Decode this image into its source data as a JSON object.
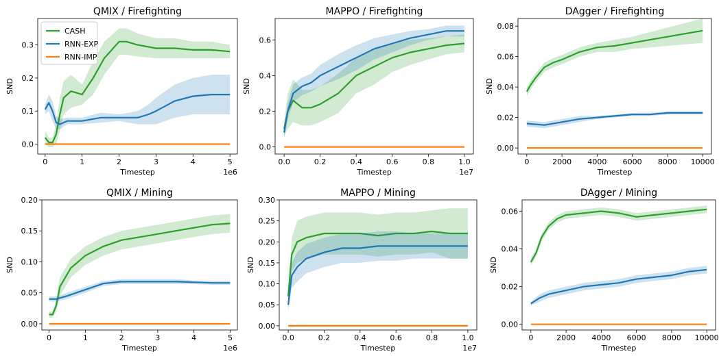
{
  "colors": {
    "CASH": "#2ca02c",
    "RNN-EXP": "#1f77b4",
    "RNN-IMP": "#ff7f0e"
  },
  "legend": [
    "CASH",
    "RNN-EXP",
    "RNN-IMP"
  ],
  "chart_data": [
    {
      "type": "line",
      "title": "QMIX / Firefighting",
      "xlabel": "Timestep",
      "ylabel": "SND",
      "xlim": [
        -0.2,
        5.2
      ],
      "ylim": [
        -0.03,
        0.38
      ],
      "xticks": [
        0,
        1,
        2,
        3,
        4,
        5
      ],
      "xtick_labels": [
        "0",
        "1",
        "2",
        "3",
        "4",
        "5"
      ],
      "x_offset": "1e6",
      "yticks": [
        0.0,
        0.1,
        0.2,
        0.3
      ],
      "ytick_labels": [
        "0.0",
        "0.1",
        "0.2",
        "0.3"
      ],
      "legend": "upper-left",
      "series": [
        {
          "name": "CASH",
          "x": [
            0,
            0.1,
            0.2,
            0.3,
            0.4,
            0.5,
            0.7,
            1.0,
            1.3,
            1.6,
            2.0,
            2.2,
            2.5,
            3.0,
            3.5,
            4.0,
            4.5,
            5.0
          ],
          "y": [
            0.02,
            0.005,
            0.005,
            0.03,
            0.09,
            0.14,
            0.16,
            0.15,
            0.2,
            0.26,
            0.31,
            0.31,
            0.3,
            0.29,
            0.29,
            0.285,
            0.285,
            0.28
          ],
          "band": [
            0.02,
            0.015,
            0.015,
            0.03,
            0.05,
            0.05,
            0.05,
            0.03,
            0.05,
            0.05,
            0.04,
            0.04,
            0.035,
            0.03,
            0.03,
            0.025,
            0.025,
            0.02
          ]
        },
        {
          "name": "RNN-EXP",
          "x": [
            0,
            0.1,
            0.2,
            0.3,
            0.4,
            0.6,
            1.0,
            1.5,
            2.0,
            2.5,
            2.8,
            3.0,
            3.5,
            4.0,
            4.5,
            5.0
          ],
          "y": [
            0.105,
            0.125,
            0.1,
            0.065,
            0.06,
            0.07,
            0.07,
            0.08,
            0.08,
            0.08,
            0.09,
            0.1,
            0.13,
            0.145,
            0.15,
            0.15
          ],
          "band": [
            0.015,
            0.025,
            0.03,
            0.02,
            0.015,
            0.01,
            0.01,
            0.015,
            0.01,
            0.02,
            0.03,
            0.04,
            0.05,
            0.055,
            0.06,
            0.06
          ]
        },
        {
          "name": "RNN-IMP",
          "x": [
            0,
            5.0
          ],
          "y": [
            0.0,
            0.0
          ],
          "band": [
            0,
            0
          ]
        }
      ]
    },
    {
      "type": "line",
      "title": "MAPPO / Firefighting",
      "xlabel": "Timestep",
      "ylabel": "SND",
      "xlim": [
        -0.05,
        1.05
      ],
      "ylim": [
        -0.04,
        0.72
      ],
      "xticks": [
        0.0,
        0.2,
        0.4,
        0.6,
        0.8,
        1.0
      ],
      "xtick_labels": [
        "0.0",
        "0.2",
        "0.4",
        "0.6",
        "0.8",
        "1.0"
      ],
      "x_offset": "1e7",
      "yticks": [
        0.0,
        0.2,
        0.4,
        0.6
      ],
      "ytick_labels": [
        "0.0",
        "0.2",
        "0.4",
        "0.6"
      ],
      "series": [
        {
          "name": "CASH",
          "x": [
            0,
            0.02,
            0.05,
            0.1,
            0.15,
            0.2,
            0.3,
            0.4,
            0.5,
            0.6,
            0.7,
            0.8,
            0.9,
            1.0
          ],
          "y": [
            0.1,
            0.2,
            0.26,
            0.22,
            0.22,
            0.24,
            0.3,
            0.4,
            0.45,
            0.5,
            0.53,
            0.55,
            0.57,
            0.58
          ],
          "band": [
            0.04,
            0.1,
            0.12,
            0.1,
            0.1,
            0.1,
            0.11,
            0.1,
            0.1,
            0.08,
            0.07,
            0.06,
            0.05,
            0.05
          ]
        },
        {
          "name": "RNN-EXP",
          "x": [
            0,
            0.02,
            0.05,
            0.1,
            0.15,
            0.2,
            0.3,
            0.4,
            0.5,
            0.6,
            0.7,
            0.8,
            0.9,
            1.0
          ],
          "y": [
            0.08,
            0.2,
            0.3,
            0.34,
            0.36,
            0.4,
            0.45,
            0.5,
            0.55,
            0.58,
            0.61,
            0.63,
            0.65,
            0.65
          ],
          "band": [
            0.03,
            0.05,
            0.05,
            0.05,
            0.05,
            0.06,
            0.07,
            0.07,
            0.06,
            0.05,
            0.04,
            0.03,
            0.03,
            0.03
          ]
        },
        {
          "name": "RNN-IMP",
          "x": [
            0,
            1.0
          ],
          "y": [
            0.0,
            0.0
          ],
          "band": [
            0,
            0
          ]
        }
      ]
    },
    {
      "type": "line",
      "title": "DAgger / Firefighting",
      "xlabel": "Timestep",
      "ylabel": "SND",
      "xlim": [
        -500,
        10500
      ],
      "ylim": [
        -0.004,
        0.085
      ],
      "xticks": [
        0,
        2000,
        4000,
        6000,
        8000,
        10000
      ],
      "xtick_labels": [
        "0",
        "2000",
        "4000",
        "6000",
        "8000",
        "10000"
      ],
      "x_offset": "",
      "yticks": [
        0.0,
        0.02,
        0.04,
        0.06,
        0.08
      ],
      "ytick_labels": [
        "0.00",
        "0.02",
        "0.04",
        "0.06",
        "0.08"
      ],
      "series": [
        {
          "name": "CASH",
          "x": [
            0,
            200,
            500,
            1000,
            1500,
            2000,
            3000,
            4000,
            5000,
            6000,
            7000,
            8000,
            9000,
            10000
          ],
          "y": [
            0.037,
            0.041,
            0.046,
            0.053,
            0.056,
            0.058,
            0.063,
            0.066,
            0.067,
            0.069,
            0.071,
            0.073,
            0.075,
            0.077
          ],
          "band": [
            0.003,
            0.003,
            0.003,
            0.003,
            0.003,
            0.003,
            0.003,
            0.003,
            0.004,
            0.004,
            0.005,
            0.006,
            0.007,
            0.008
          ]
        },
        {
          "name": "RNN-EXP",
          "x": [
            0,
            1000,
            2000,
            3000,
            4000,
            5000,
            6000,
            7000,
            8000,
            9000,
            10000
          ],
          "y": [
            0.016,
            0.015,
            0.017,
            0.019,
            0.02,
            0.021,
            0.022,
            0.022,
            0.023,
            0.023,
            0.023
          ],
          "band": [
            0.002,
            0.002,
            0.002,
            0.002,
            0.001,
            0.001,
            0.001,
            0.001,
            0.001,
            0.001,
            0.001
          ]
        },
        {
          "name": "RNN-IMP",
          "x": [
            0,
            10000
          ],
          "y": [
            0.0,
            0.0
          ],
          "band": [
            0,
            0
          ]
        }
      ]
    },
    {
      "type": "line",
      "title": "QMIX / Mining",
      "xlabel": "Timestep",
      "ylabel": "SND",
      "xlim": [
        -0.2,
        5.2
      ],
      "ylim": [
        -0.01,
        0.2
      ],
      "xticks": [
        0,
        1,
        2,
        3,
        4,
        5
      ],
      "xtick_labels": [
        "0",
        "1",
        "2",
        "3",
        "4",
        "5"
      ],
      "x_offset": "1e6",
      "yticks": [
        0.0,
        0.05,
        0.1,
        0.15,
        0.2
      ],
      "ytick_labels": [
        "0.00",
        "0.05",
        "0.10",
        "0.15",
        "0.20"
      ],
      "series": [
        {
          "name": "CASH",
          "x": [
            0,
            0.1,
            0.2,
            0.3,
            0.4,
            0.6,
            0.8,
            1.0,
            1.5,
            2.0,
            2.5,
            3.0,
            3.5,
            4.0,
            4.5,
            5.0
          ],
          "y": [
            0.015,
            0.015,
            0.03,
            0.06,
            0.07,
            0.09,
            0.1,
            0.11,
            0.125,
            0.135,
            0.14,
            0.145,
            0.15,
            0.155,
            0.16,
            0.162
          ],
          "band": [
            0.005,
            0.005,
            0.01,
            0.015,
            0.015,
            0.015,
            0.015,
            0.015,
            0.015,
            0.015,
            0.015,
            0.015,
            0.015,
            0.015,
            0.015,
            0.015
          ]
        },
        {
          "name": "RNN-EXP",
          "x": [
            0,
            0.2,
            0.5,
            1.0,
            1.5,
            2.0,
            2.5,
            3.0,
            3.5,
            4.0,
            4.5,
            5.0
          ],
          "y": [
            0.04,
            0.04,
            0.045,
            0.055,
            0.065,
            0.068,
            0.068,
            0.068,
            0.068,
            0.067,
            0.066,
            0.066
          ],
          "band": [
            0.004,
            0.004,
            0.005,
            0.005,
            0.004,
            0.004,
            0.004,
            0.004,
            0.004,
            0.003,
            0.003,
            0.003
          ]
        },
        {
          "name": "RNN-IMP",
          "x": [
            0,
            5.0
          ],
          "y": [
            0.0,
            0.0
          ],
          "band": [
            0,
            0
          ]
        }
      ]
    },
    {
      "type": "line",
      "title": "MAPPO / Mining",
      "xlabel": "Timestep",
      "ylabel": "SND",
      "xlim": [
        -0.05,
        1.05
      ],
      "ylim": [
        -0.01,
        0.3
      ],
      "xticks": [
        0.0,
        0.2,
        0.4,
        0.6,
        0.8,
        1.0
      ],
      "xtick_labels": [
        "0.0",
        "0.2",
        "0.4",
        "0.6",
        "0.8",
        "1.0"
      ],
      "x_offset": "1e7",
      "yticks": [
        0.0,
        0.05,
        0.1,
        0.15,
        0.2,
        0.25,
        0.3
      ],
      "ytick_labels": [
        "0.00",
        "0.05",
        "0.10",
        "0.15",
        "0.20",
        "0.25",
        "0.30"
      ],
      "series": [
        {
          "name": "CASH",
          "x": [
            0,
            0.02,
            0.05,
            0.1,
            0.2,
            0.3,
            0.4,
            0.5,
            0.6,
            0.7,
            0.8,
            0.9,
            1.0
          ],
          "y": [
            0.07,
            0.17,
            0.2,
            0.21,
            0.22,
            0.22,
            0.22,
            0.215,
            0.22,
            0.22,
            0.225,
            0.22,
            0.22
          ],
          "band": [
            0.02,
            0.04,
            0.05,
            0.05,
            0.05,
            0.05,
            0.05,
            0.05,
            0.05,
            0.05,
            0.05,
            0.06,
            0.06
          ]
        },
        {
          "name": "RNN-EXP",
          "x": [
            0,
            0.02,
            0.05,
            0.1,
            0.2,
            0.3,
            0.4,
            0.5,
            0.6,
            0.7,
            0.8,
            0.9,
            1.0
          ],
          "y": [
            0.05,
            0.12,
            0.14,
            0.16,
            0.175,
            0.185,
            0.185,
            0.19,
            0.19,
            0.19,
            0.19,
            0.19,
            0.19
          ],
          "band": [
            0.015,
            0.03,
            0.035,
            0.035,
            0.035,
            0.035,
            0.035,
            0.035,
            0.035,
            0.03,
            0.03,
            0.03,
            0.03
          ]
        },
        {
          "name": "RNN-IMP",
          "x": [
            0,
            1.0
          ],
          "y": [
            0.0,
            0.0
          ],
          "band": [
            0,
            0
          ]
        }
      ]
    },
    {
      "type": "line",
      "title": "DAgger / Mining",
      "xlabel": "Timestep",
      "ylabel": "SND",
      "xlim": [
        -500,
        10500
      ],
      "ylim": [
        -0.003,
        0.066
      ],
      "xticks": [
        0,
        2000,
        4000,
        6000,
        8000,
        10000
      ],
      "xtick_labels": [
        "0",
        "2000",
        "4000",
        "6000",
        "8000",
        "10000"
      ],
      "x_offset": "",
      "yticks": [
        0.0,
        0.02,
        0.04,
        0.06
      ],
      "ytick_labels": [
        "0.00",
        "0.02",
        "0.04",
        "0.06"
      ],
      "series": [
        {
          "name": "CASH",
          "x": [
            0,
            300,
            600,
            1000,
            1500,
            2000,
            3000,
            4000,
            5000,
            6000,
            7000,
            8000,
            9000,
            10000
          ],
          "y": [
            0.033,
            0.038,
            0.046,
            0.052,
            0.056,
            0.058,
            0.059,
            0.06,
            0.059,
            0.057,
            0.058,
            0.059,
            0.06,
            0.061
          ],
          "band": [
            0.002,
            0.002,
            0.002,
            0.002,
            0.002,
            0.002,
            0.002,
            0.002,
            0.002,
            0.002,
            0.002,
            0.002,
            0.002,
            0.002
          ]
        },
        {
          "name": "RNN-EXP",
          "x": [
            0,
            500,
            1000,
            2000,
            3000,
            4000,
            5000,
            6000,
            7000,
            8000,
            9000,
            10000
          ],
          "y": [
            0.011,
            0.014,
            0.016,
            0.018,
            0.02,
            0.021,
            0.022,
            0.024,
            0.025,
            0.026,
            0.028,
            0.029
          ],
          "band": [
            0.001,
            0.002,
            0.002,
            0.002,
            0.002,
            0.002,
            0.002,
            0.002,
            0.002,
            0.002,
            0.002,
            0.002
          ]
        },
        {
          "name": "RNN-IMP",
          "x": [
            0,
            10000
          ],
          "y": [
            0.0,
            0.0
          ],
          "band": [
            0,
            0
          ]
        }
      ]
    }
  ]
}
